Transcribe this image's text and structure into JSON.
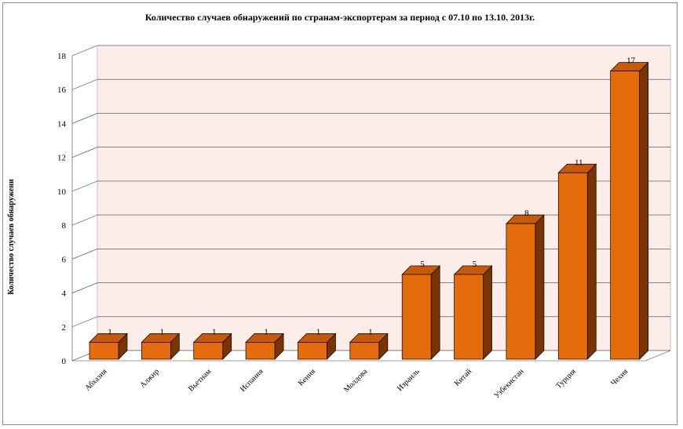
{
  "chart_data": {
    "type": "bar",
    "title": "Количество случаев обнаружений по странам-экспортерам за период с 07.10 по 13.10. 2013г.",
    "xlabel": "",
    "ylabel": "Количество случаев обнаружени",
    "categories": [
      "Абхазия",
      "Алжир",
      "Вьетнам",
      "Испания",
      "Кения",
      "Молдова",
      "Израиль",
      "Китай",
      "Узбекистан",
      "Турция",
      "Чехия"
    ],
    "values": [
      1,
      1,
      1,
      1,
      1,
      1,
      5,
      5,
      8,
      11,
      17
    ],
    "ylim": [
      0,
      18
    ],
    "yticks": [
      "0",
      "2",
      "4",
      "6",
      "8",
      "10",
      "12",
      "14",
      "16",
      "18"
    ],
    "data_labels": [
      "1",
      "1",
      "1",
      "1",
      "1",
      "1",
      "5",
      "5",
      "8",
      "11",
      "17"
    ],
    "grid": true,
    "legend": "none",
    "style": "3d-column",
    "colors": {
      "bar_front": "#e46c0a",
      "bar_top": "#c65a08",
      "bar_side": "#7a3400",
      "back_wall": "#fdede8",
      "gridline": "#404040"
    }
  }
}
